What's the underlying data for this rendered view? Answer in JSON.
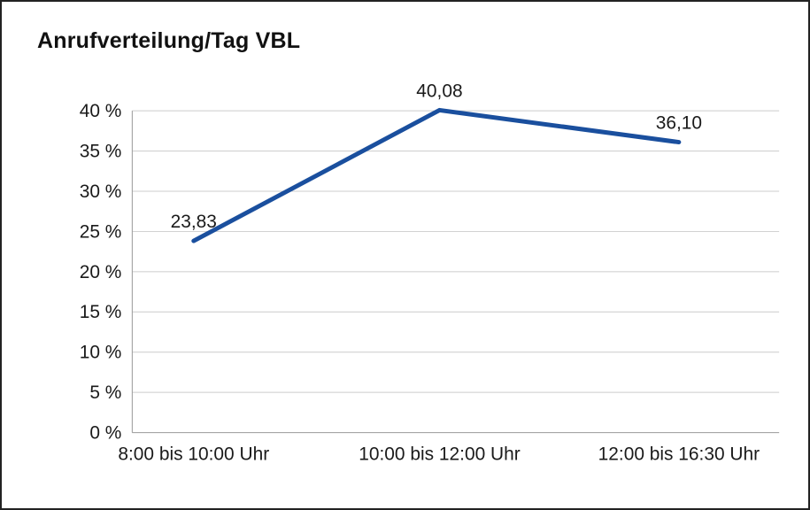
{
  "chart_data": {
    "type": "line",
    "title": "Anrufverteilung/Tag VBL",
    "categories": [
      "8:00 bis 10:00 Uhr",
      "10:00 bis 12:00 Uhr",
      "12:00 bis 16:30 Uhr"
    ],
    "series": [
      {
        "values": [
          23.83,
          40.08,
          36.1
        ],
        "labels": [
          "23,83",
          "40,08",
          "36,10"
        ]
      }
    ],
    "xlabel": "",
    "ylabel": "",
    "ylim": [
      0,
      40
    ],
    "ytick_step": 5,
    "ytick_labels": [
      "0 %",
      "5 %",
      "10 %",
      "15 %",
      "20 %",
      "25 %",
      "30 %",
      "35 %",
      "40 %"
    ],
    "grid": "horizontal",
    "legend": "none",
    "line_color": "#1a4f9e",
    "text_color": "#1a1a1a",
    "grid_color": "#cccccc",
    "axis_color": "#999999"
  }
}
